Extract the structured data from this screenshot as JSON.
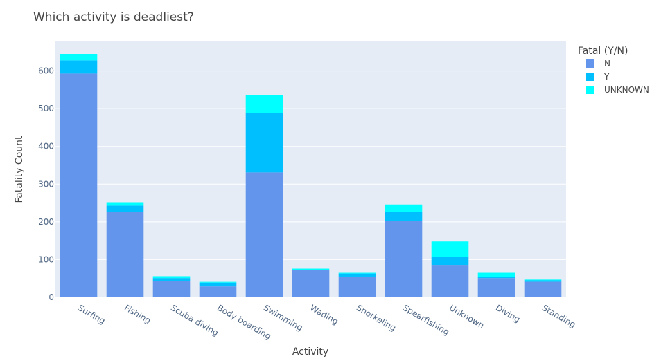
{
  "chart_data": {
    "type": "bar",
    "stacked": true,
    "title": "Which activity is deadliest?",
    "xlabel": "Activity",
    "ylabel": "Fatality Count",
    "categories": [
      "Surfing",
      "Fishing",
      "Scuba diving",
      "Body boarding",
      "Swimming",
      "Wading",
      "Snorkeling",
      "Spearfishing",
      "Unknown",
      "Diving",
      "Standing"
    ],
    "series": [
      {
        "name": "N",
        "color": "#6495ED",
        "values": [
          593,
          227,
          44,
          29,
          331,
          72,
          55,
          203,
          86,
          51,
          41
        ]
      },
      {
        "name": "Y",
        "color": "#00BFFF",
        "values": [
          35,
          16,
          7,
          10,
          157,
          1,
          8,
          24,
          21,
          3,
          4
        ]
      },
      {
        "name": "UNKNOWN",
        "color": "#00FFFF",
        "values": [
          17,
          9,
          5,
          2,
          48,
          3,
          2,
          19,
          41,
          11,
          2
        ]
      }
    ],
    "ylim": [
      0,
      678
    ],
    "yticks": [
      0,
      100,
      200,
      300,
      400,
      500,
      600
    ],
    "grid": true,
    "legend": {
      "title": "Fatal (Y/N)",
      "placement": "right"
    }
  },
  "colors": {
    "plot_bg": "#E5ECF6",
    "grid": "#ffffff"
  }
}
